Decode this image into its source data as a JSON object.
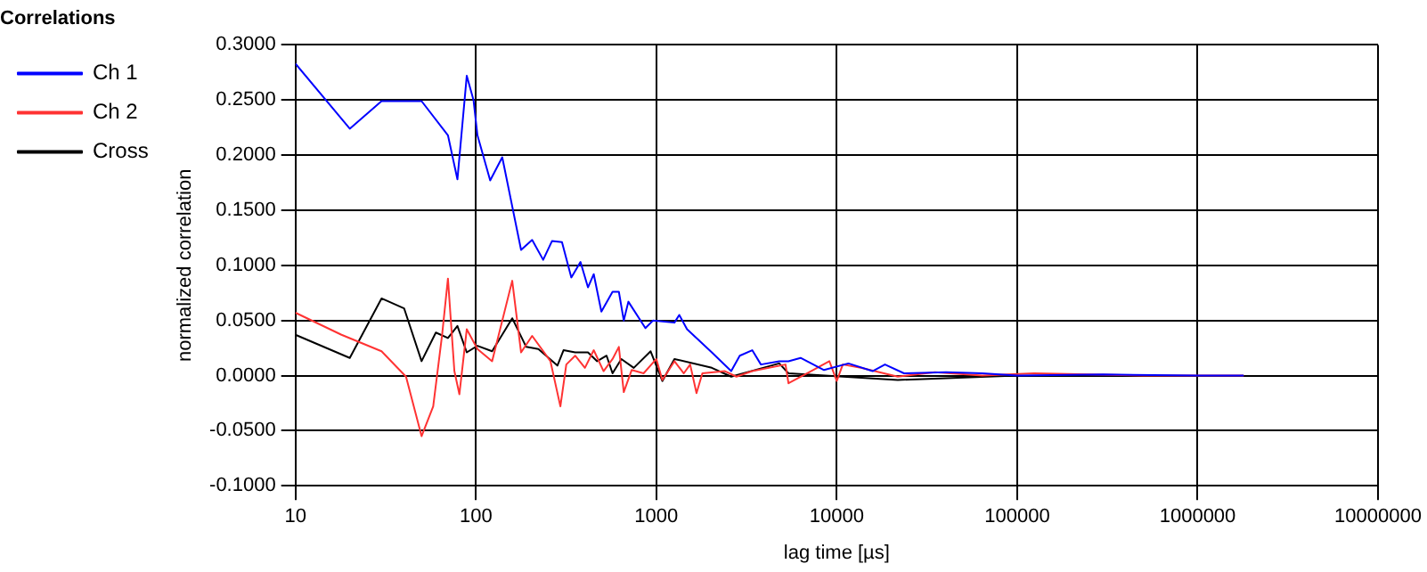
{
  "chart_data": {
    "type": "line",
    "title": "Correlations",
    "xlabel": "lag time [µs]",
    "ylabel": "normalized correlation",
    "log": "x",
    "grid": true,
    "legend": "top left",
    "marker": "none",
    "line_style": "solid",
    "xlim": [
      10,
      10000000
    ],
    "xticks": [
      10,
      100,
      1000,
      10000,
      100000,
      1000000,
      10000000
    ],
    "ylim": [
      -0.1,
      0.3
    ],
    "yticks": [
      {
        "value": -0.1,
        "label": "-0.1000"
      },
      {
        "value": -0.05,
        "label": "-0.0500"
      },
      {
        "value": 0,
        "label": "0.0000"
      },
      {
        "value": 0.05,
        "label": "0.0500"
      },
      {
        "value": 0.1,
        "label": "0.1000"
      },
      {
        "value": 0.15,
        "label": "0.1500"
      },
      {
        "value": 0.2,
        "label": "0.2000"
      },
      {
        "value": 0.25,
        "label": "0.2500"
      },
      {
        "value": 0.3,
        "label": "0.3000"
      }
    ],
    "series": [
      {
        "name": "Ch 1",
        "color": "#0000ff",
        "x": [
          10,
          20,
          30,
          50,
          70,
          79,
          89,
          97,
          102,
          120,
          140,
          178,
          205,
          236,
          264,
          300,
          338,
          380,
          418,
          450,
          496,
          572,
          620,
          660,
          700,
          870,
          960,
          1260,
          1340,
          1480,
          2030,
          2600,
          2900,
          3400,
          3800,
          4800,
          5400,
          6300,
          8500,
          11600,
          15800,
          18500,
          23600,
          40400,
          64000,
          100000,
          300000,
          1000000,
          1800000
        ],
        "values": [
          0.283,
          0.224,
          0.249,
          0.249,
          0.218,
          0.178,
          0.272,
          0.25,
          0.218,
          0.177,
          0.198,
          0.114,
          0.123,
          0.105,
          0.122,
          0.121,
          0.089,
          0.103,
          0.08,
          0.092,
          0.058,
          0.076,
          0.076,
          0.05,
          0.067,
          0.043,
          0.05,
          0.048,
          0.055,
          0.042,
          0.021,
          0.004,
          0.018,
          0.023,
          0.01,
          0.013,
          0.013,
          0.016,
          0.005,
          0.011,
          0.004,
          0.01,
          0.002,
          0.003,
          0.002,
          0,
          0.001,
          0,
          0
        ]
      },
      {
        "name": "Ch 2",
        "color": "#ff3333",
        "x": [
          10,
          18,
          30,
          41,
          50,
          58,
          65,
          70,
          76,
          81,
          89,
          102,
          123,
          159,
          178,
          205,
          259,
          294,
          317,
          355,
          402,
          450,
          510,
          572,
          620,
          660,
          730,
          850,
          1000,
          1080,
          1260,
          1420,
          1540,
          1670,
          1800,
          2400,
          2780,
          3400,
          5200,
          5400,
          7200,
          9100,
          10000,
          10800,
          13600,
          21800,
          35000,
          64000,
          124000,
          500000,
          1800000
        ],
        "values": [
          0.057,
          0.037,
          0.022,
          -0.001,
          -0.055,
          -0.028,
          0.037,
          0.088,
          0.004,
          -0.017,
          0.042,
          0.024,
          0.013,
          0.086,
          0.021,
          0.036,
          0.013,
          -0.028,
          0.01,
          0.018,
          0.007,
          0.023,
          0.004,
          0.015,
          0.026,
          -0.015,
          0.005,
          0.002,
          0.015,
          -0.004,
          0.013,
          0.002,
          0.01,
          -0.016,
          0.002,
          0.004,
          -0.001,
          0.004,
          0.01,
          -0.007,
          0.004,
          0.013,
          -0.005,
          0.01,
          0.007,
          -0.001,
          0.003,
          0,
          0.002,
          0,
          0
        ]
      },
      {
        "name": "Cross",
        "color": "#000000",
        "x": [
          10,
          20,
          30,
          40,
          50,
          60,
          70,
          79,
          89,
          102,
          123,
          159,
          190,
          222,
          283,
          306,
          355,
          418,
          470,
          530,
          572,
          640,
          750,
          930,
          1080,
          1260,
          2030,
          2600,
          4800,
          5400,
          21800,
          100000
        ],
        "values": [
          0.037,
          0.016,
          0.07,
          0.061,
          0.013,
          0.039,
          0.034,
          0.045,
          0.021,
          0.027,
          0.022,
          0.052,
          0.026,
          0.024,
          0.009,
          0.023,
          0.021,
          0.021,
          0.013,
          0.018,
          0.002,
          0.015,
          0.007,
          0.022,
          -0.005,
          0.015,
          0.007,
          -0.001,
          0.011,
          0.002,
          -0.004,
          0
        ]
      }
    ]
  }
}
